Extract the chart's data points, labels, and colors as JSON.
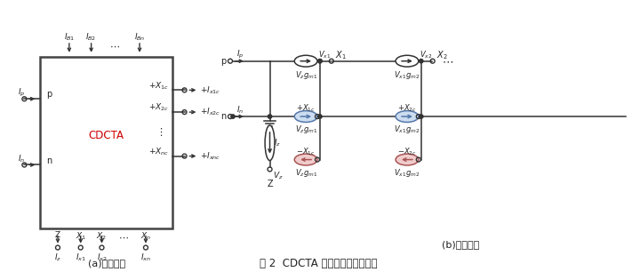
{
  "fig_width": 7.11,
  "fig_height": 3.06,
  "dpi": 100,
  "bg_color": "#ffffff",
  "line_color": "#333333",
  "text_color": "#222222",
  "cdcta_label": "CDCTA",
  "title": "图 2  CDCTA 元件符号及等效电路",
  "caption_a": "(a)电路符号",
  "caption_b": "(b)等效电路"
}
